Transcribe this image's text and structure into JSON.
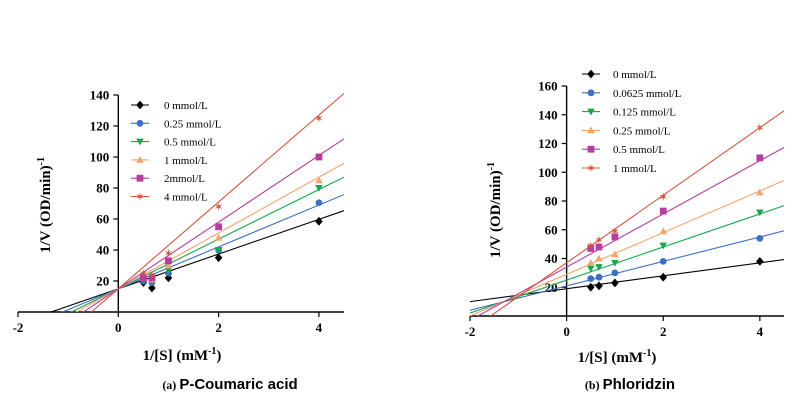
{
  "chart_data": [
    {
      "type": "line",
      "caption_letter": "(a)",
      "caption": "P-Coumaric acid",
      "xlabel_main": "1/[S] (mM",
      "xlabel_sup": "-1",
      "xlabel_end": ")",
      "ylabel_main": "1/V (OD/min)",
      "ylabel_sup": "-1",
      "xlim": [
        -2,
        4.5
      ],
      "ylim": [
        0,
        140
      ],
      "xticks": [
        -2,
        0,
        2,
        4
      ],
      "yticks": [
        20,
        40,
        60,
        80,
        100,
        120,
        140
      ],
      "legend_position": "top-left",
      "series": [
        {
          "name": "0 mmol/L",
          "color": "#000000",
          "marker": "diamond",
          "slope": 11.2,
          "intercept": 15,
          "x": [
            0.5,
            0.67,
            1,
            2,
            4
          ],
          "y": [
            19,
            15.5,
            22,
            35,
            58.5
          ]
        },
        {
          "name": "0.25 mmol/L",
          "color": "#3d6fc2",
          "marker": "circle",
          "slope": 13.5,
          "intercept": 15,
          "x": [
            0.5,
            0.67,
            1,
            2,
            4
          ],
          "y": [
            20,
            19,
            25,
            40,
            70.5
          ]
        },
        {
          "name": "0.5 mmol/L",
          "color": "#17a84c",
          "marker": "triangle-down",
          "slope": 16,
          "intercept": 15,
          "x": [
            0.5,
            0.67,
            1,
            2,
            4
          ],
          "y": [
            21,
            20,
            27,
            40,
            80
          ]
        },
        {
          "name": "1 mmol/L",
          "color": "#f4a46c",
          "marker": "triangle-up",
          "slope": 18,
          "intercept": 15,
          "x": [
            0.5,
            0.67,
            1,
            2,
            4
          ],
          "y": [
            22,
            21,
            30,
            48,
            85
          ]
        },
        {
          "name": "2mmol/L",
          "color": "#b43d9e",
          "marker": "square",
          "slope": 21.5,
          "intercept": 15,
          "x": [
            0.5,
            0.67,
            1,
            2,
            4
          ],
          "y": [
            22,
            22,
            33,
            55,
            100
          ]
        },
        {
          "name": "4 mmol/L",
          "color": "#d4553c",
          "marker": "star",
          "slope": 28,
          "intercept": 15,
          "x": [
            0.5,
            0.67,
            1,
            2,
            4
          ],
          "y": [
            25,
            24,
            38,
            68,
            125
          ]
        }
      ]
    },
    {
      "type": "line",
      "caption_letter": "(b)",
      "caption": "Phloridzin",
      "xlabel_main": "1/[S] (mM",
      "xlabel_sup": "-1",
      "xlabel_end": ")",
      "ylabel_main": "1/V (OD/min)",
      "ylabel_sup": "-1",
      "xlim": [
        -2,
        4.5
      ],
      "ylim": [
        0,
        160
      ],
      "xticks": [
        -2,
        0,
        2,
        4
      ],
      "yticks": [
        20,
        40,
        60,
        80,
        100,
        120,
        140,
        160
      ],
      "legend_position": "top-left",
      "series": [
        {
          "name": "0 mmol/L",
          "color": "#000000",
          "marker": "diamond",
          "slope": 4.5,
          "intercept": 19,
          "x": [
            0.5,
            0.67,
            1,
            2,
            4
          ],
          "y": [
            20,
            21,
            23,
            27,
            38
          ]
        },
        {
          "name": "0.0625 mmol/L",
          "color": "#3d6fc2",
          "marker": "circle",
          "slope": 8.5,
          "intercept": 21,
          "x": [
            0.5,
            0.67,
            1,
            2,
            4
          ],
          "y": [
            26,
            27,
            30,
            38,
            54
          ]
        },
        {
          "name": "0.125 mmol/L",
          "color": "#17a84c",
          "marker": "triangle-down",
          "slope": 11.5,
          "intercept": 25,
          "x": [
            0.5,
            0.67,
            1,
            2,
            4
          ],
          "y": [
            33,
            34,
            37,
            49,
            72
          ]
        },
        {
          "name": "0.25 mmol/L",
          "color": "#f4a46c",
          "marker": "triangle-up",
          "slope": 14.5,
          "intercept": 29,
          "x": [
            0.5,
            0.67,
            1,
            2,
            4
          ],
          "y": [
            37,
            40,
            43,
            59,
            86
          ]
        },
        {
          "name": "0.5 mmol/L",
          "color": "#b43d9e",
          "marker": "square",
          "slope": 18.5,
          "intercept": 34,
          "x": [
            0.5,
            0.67,
            1,
            2,
            4
          ],
          "y": [
            47,
            48,
            55,
            73,
            110
          ]
        },
        {
          "name": "1 mmol/L",
          "color": "#d4553c",
          "marker": "star",
          "slope": 23.5,
          "intercept": 37,
          "x": [
            0.5,
            0.67,
            1,
            2,
            4
          ],
          "y": [
            49,
            53,
            59,
            83,
            131
          ]
        }
      ]
    }
  ]
}
